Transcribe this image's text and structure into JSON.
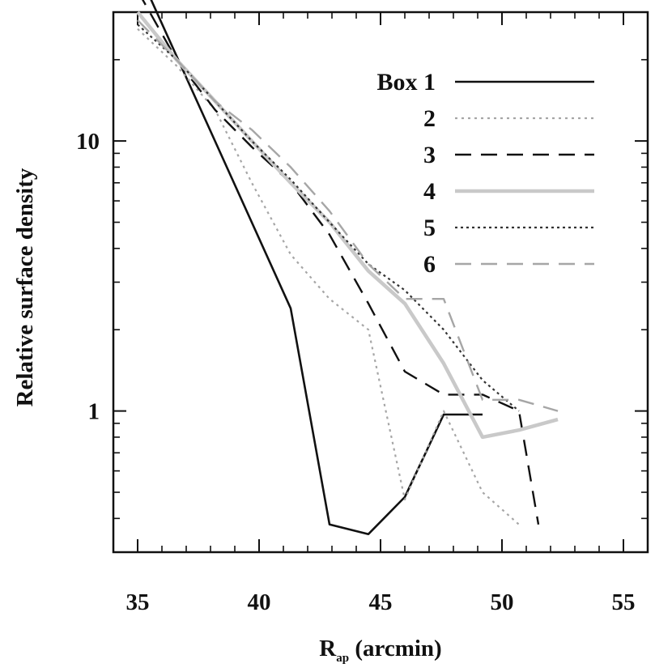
{
  "chart_data": {
    "type": "line",
    "title": "",
    "xlabel": "R",
    "xlabel_sub": "ap",
    "xlabel_units": "(arcmin)",
    "ylabel": "Relative surface density",
    "xlim": [
      34,
      56
    ],
    "ylim": [
      0.3,
      30
    ],
    "yscale": "log",
    "grid": false,
    "legend_position": "top-right",
    "x_ticks": [
      35,
      40,
      45,
      50,
      55
    ],
    "x_tick_labels": [
      "35",
      "40",
      "45",
      "50",
      "55"
    ],
    "y_ticks": [
      1,
      10
    ],
    "y_tick_labels": [
      "1",
      "10"
    ],
    "series": [
      {
        "name": "Box 1",
        "color": "#111111",
        "dash": "none",
        "width": 2.6,
        "x": [
          35.0,
          41.3,
          42.9,
          44.5,
          46.0,
          47.6,
          49.2
        ],
        "y": [
          43.0,
          2.4,
          0.38,
          0.35,
          0.48,
          0.97,
          0.97
        ]
      },
      {
        "name": "2",
        "color": "#a6a6a6",
        "dash": "3,5",
        "width": 2.2,
        "x": [
          35.0,
          36.6,
          38.2,
          39.7,
          41.3,
          42.9,
          44.5,
          46.0,
          47.6,
          49.2,
          50.7
        ],
        "y": [
          26.0,
          19.0,
          13.0,
          7.0,
          3.8,
          2.6,
          2.0,
          0.47,
          1.0,
          0.5,
          0.38
        ]
      },
      {
        "name": "3",
        "color": "#111111",
        "dash": "20,12",
        "width": 2.4,
        "x": [
          35.0,
          36.6,
          38.2,
          39.7,
          41.3,
          42.9,
          44.5,
          46.0,
          47.6,
          49.2,
          50.7,
          51.5
        ],
        "y": [
          36.0,
          20.0,
          13.0,
          9.5,
          7.0,
          4.5,
          2.5,
          1.4,
          1.15,
          1.15,
          1.0,
          0.38
        ]
      },
      {
        "name": "4",
        "color": "#c9c9c9",
        "dash": "none",
        "width": 4.5,
        "x": [
          35.0,
          36.6,
          38.2,
          39.7,
          41.3,
          42.9,
          44.5,
          46.0,
          47.6,
          49.2,
          50.7,
          52.3
        ],
        "y": [
          30.0,
          20.0,
          14.0,
          10.0,
          7.0,
          5.0,
          3.3,
          2.5,
          1.5,
          0.8,
          0.85,
          0.93
        ]
      },
      {
        "name": "5",
        "color": "#333333",
        "dash": "3,4",
        "width": 2.2,
        "x": [
          35.0,
          36.6,
          38.2,
          39.7,
          41.3,
          42.9,
          44.5,
          46.0,
          47.6,
          49.2,
          50.7
        ],
        "y": [
          27.0,
          20.0,
          14.0,
          10.0,
          7.2,
          5.0,
          3.5,
          2.8,
          2.0,
          1.3,
          1.0
        ]
      },
      {
        "name": "6",
        "color": "#a6a6a6",
        "dash": "20,12",
        "width": 2.4,
        "x": [
          35.0,
          36.6,
          38.2,
          39.7,
          41.3,
          42.9,
          44.5,
          46.0,
          47.6,
          49.2,
          50.7,
          52.3
        ],
        "y": [
          28.0,
          20.0,
          14.0,
          11.0,
          8.0,
          5.5,
          3.5,
          2.6,
          2.6,
          1.1,
          1.1,
          1.0
        ]
      }
    ]
  }
}
